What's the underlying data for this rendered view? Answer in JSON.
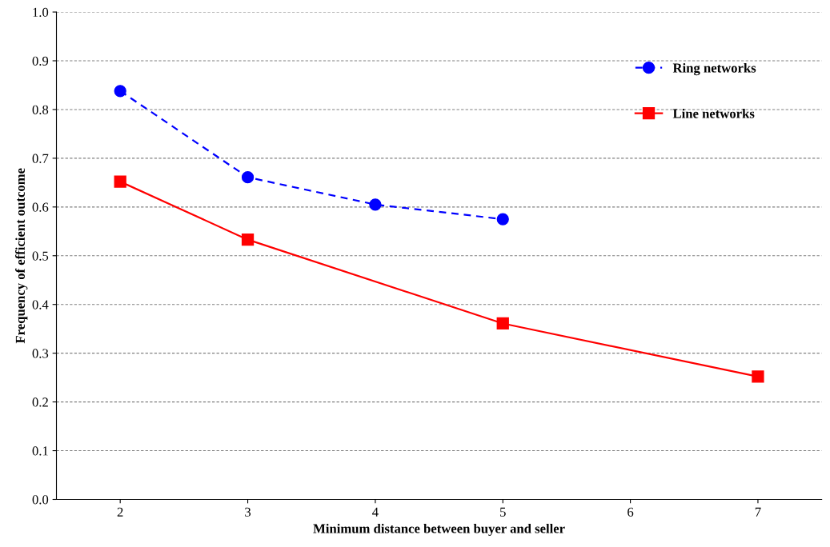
{
  "chart_data": {
    "type": "line",
    "xlabel": "Minimum distance between buyer and seller",
    "ylabel": "Frequency of efficient outcome",
    "xlim": [
      1.5,
      7.5
    ],
    "xticks": [
      2,
      3,
      4,
      5,
      6,
      7
    ],
    "ylim": [
      0,
      1
    ],
    "yticks": [
      {
        "value": 0,
        "label": "0.0"
      },
      0.1,
      0.2,
      0.3,
      0.4,
      0.5,
      0.6,
      0.7,
      0.8,
      0.9,
      {
        "value": 1,
        "label": "1.0"
      }
    ],
    "grid": "y",
    "legend": "top right",
    "series": [
      {
        "name": "Ring networks",
        "color": "#0000ff",
        "marker": "circle",
        "line_style": "dashed",
        "x": [
          2,
          3,
          4,
          5
        ],
        "values": [
          0.838,
          0.661,
          0.605,
          0.575
        ]
      },
      {
        "name": "Line networks",
        "color": "#ff0000",
        "marker": "square",
        "line_style": "solid",
        "x": [
          2,
          3,
          5,
          7
        ],
        "values": [
          0.652,
          0.533,
          0.361,
          0.252
        ]
      }
    ]
  }
}
